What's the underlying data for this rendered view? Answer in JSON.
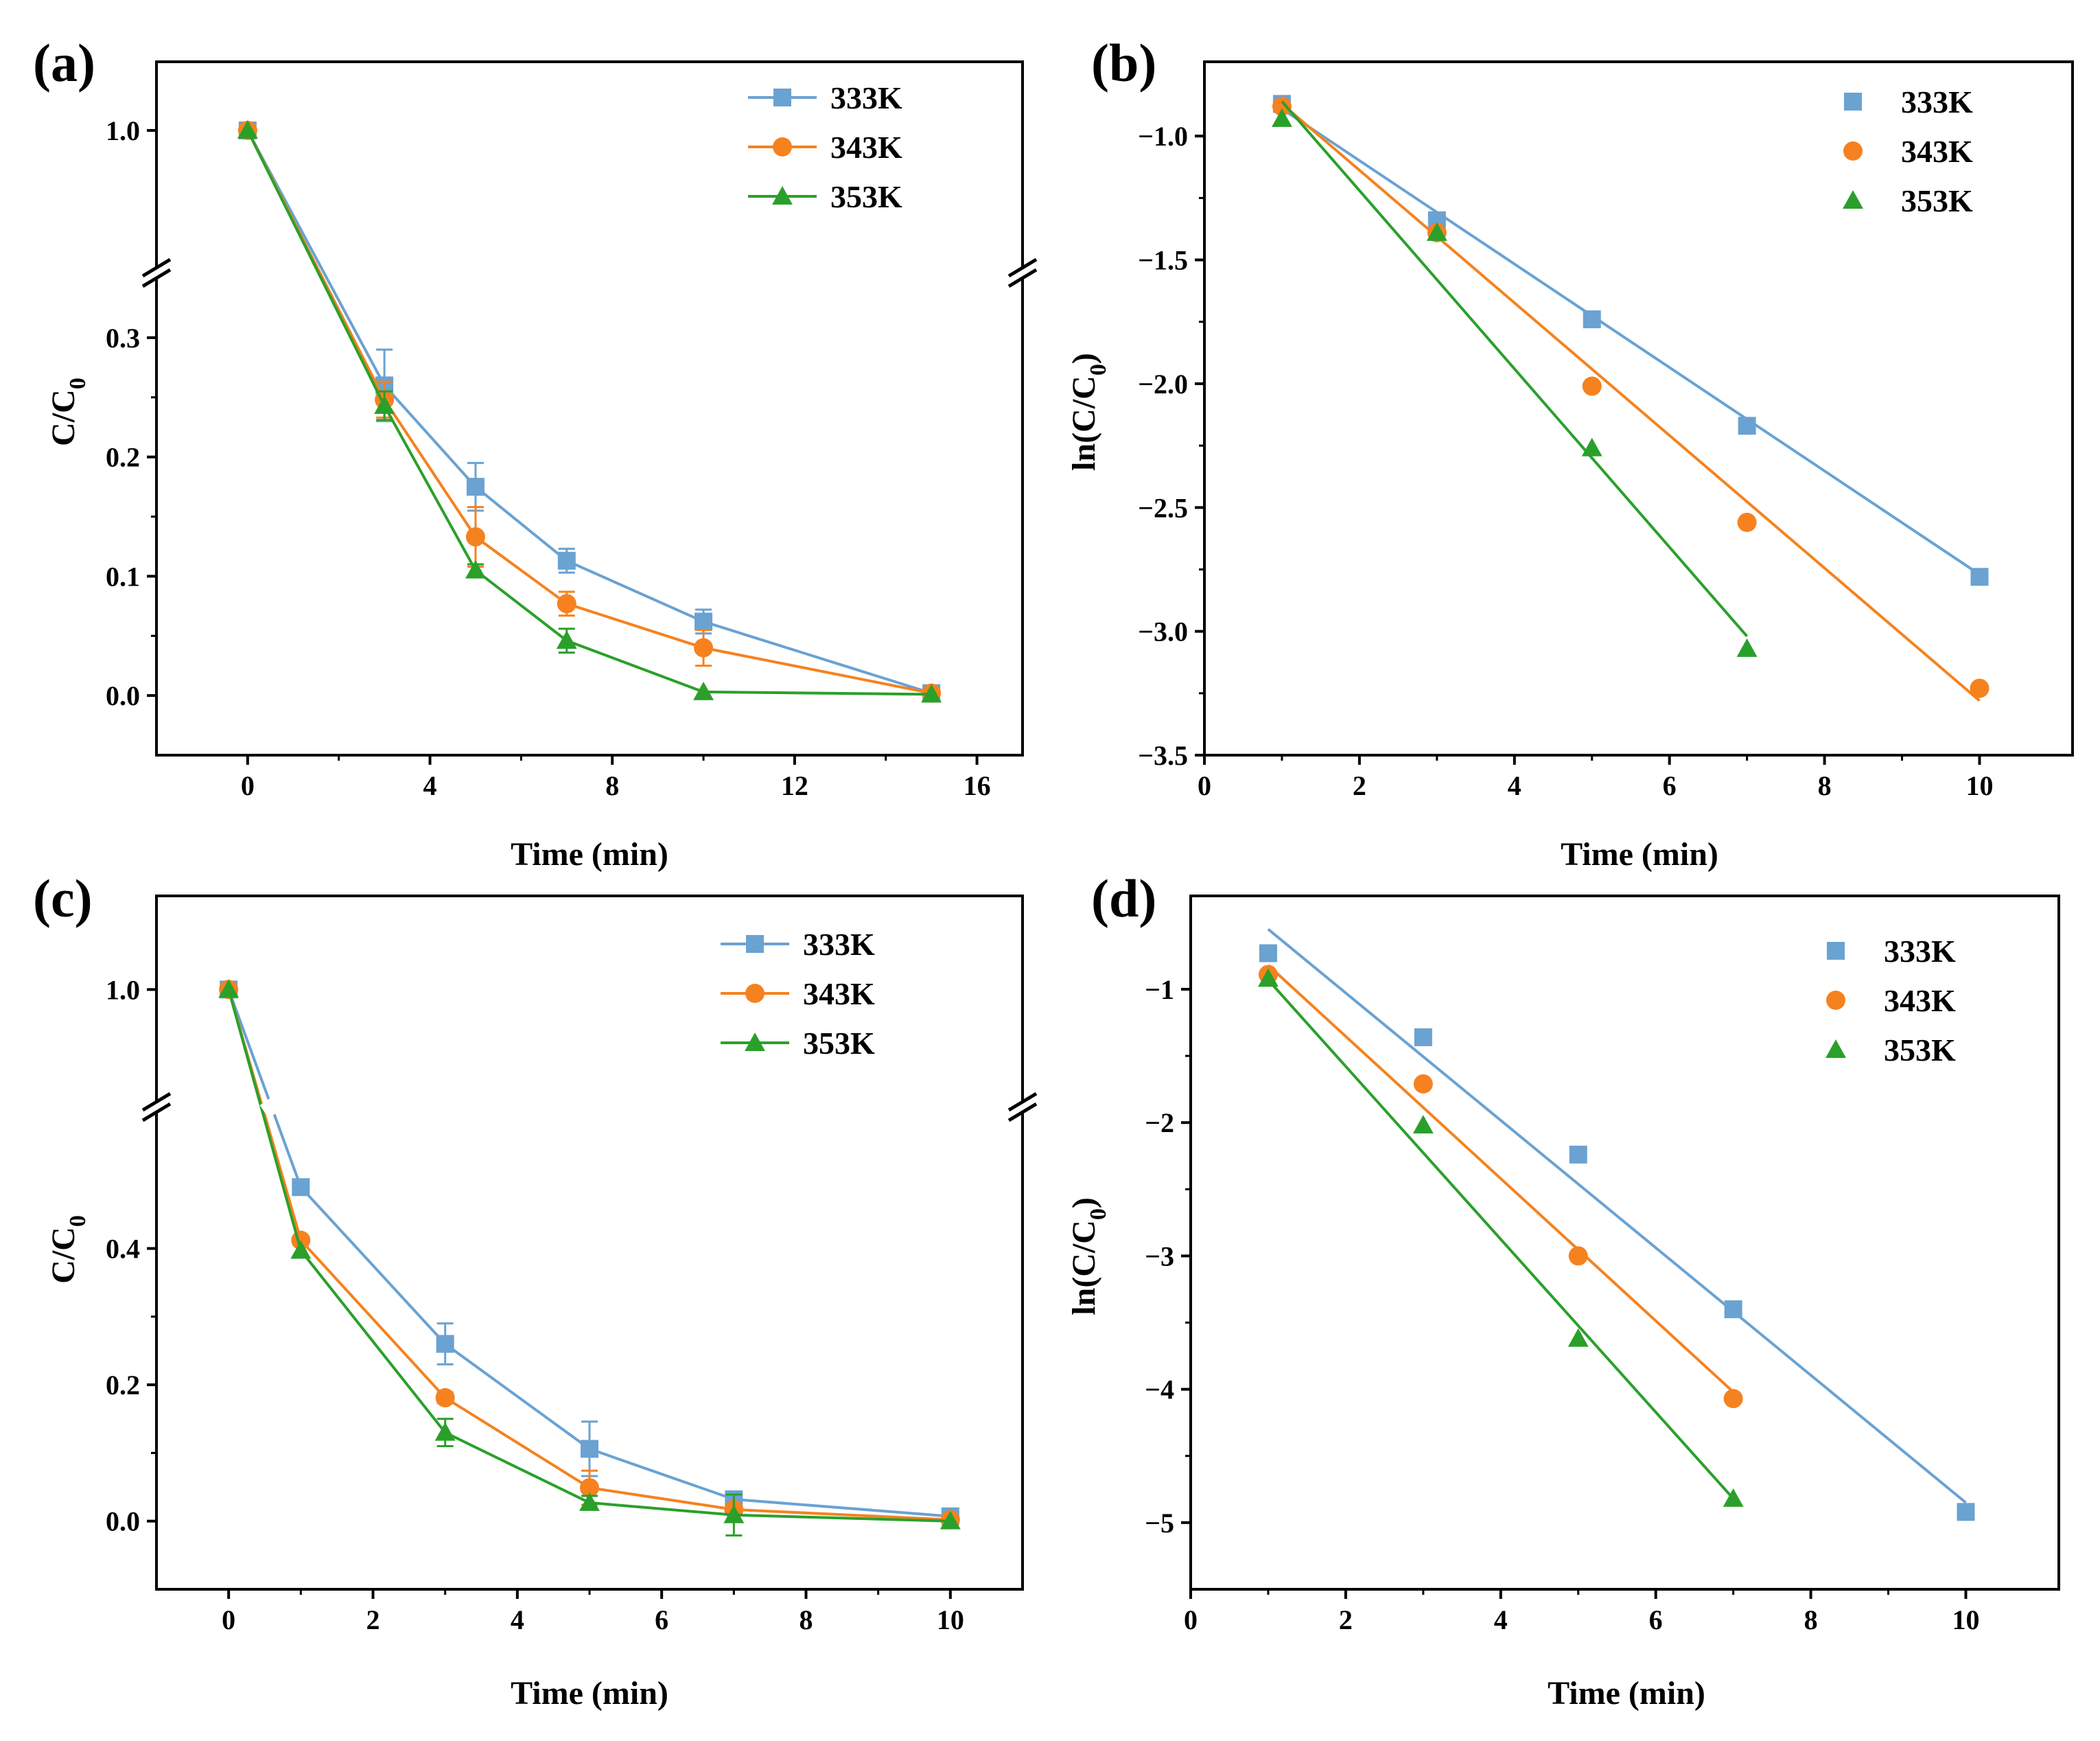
{
  "colors": {
    "333K": "#6aa2d2",
    "343K": "#f5821f",
    "353K": "#2aa02b"
  },
  "chart_data": [
    {
      "panel": "(a)",
      "type": "line",
      "xlabel": "Time (min)",
      "ylabel": "C/C0",
      "ylabel_main": "C/C",
      "ylabel_sub": "0",
      "xlim": [
        -2,
        17
      ],
      "xticks": [
        0,
        4,
        8,
        12,
        16
      ],
      "xtick_labels": [
        "0",
        "4",
        "8",
        "12",
        "16"
      ],
      "yticks": [
        0.0,
        0.1,
        0.2,
        0.3,
        1.0
      ],
      "ytick_labels": [
        "0.0",
        "0.1",
        "0.2",
        "0.3",
        "1.0"
      ],
      "broken_axis": true,
      "y_lower_range": [
        -0.05,
        0.35
      ],
      "y_upper_range": [
        0.88,
        1.06
      ],
      "legend": {
        "style": "line-marker",
        "position": "top-right"
      },
      "series": [
        {
          "name": "333K",
          "x": [
            0,
            3,
            5,
            7,
            10,
            15
          ],
          "y": [
            1.0,
            0.26,
            0.175,
            0.113,
            0.062,
            0.002
          ],
          "err": [
            0,
            0.03,
            0.02,
            0.01,
            0.01,
            0
          ]
        },
        {
          "name": "343K",
          "x": [
            0,
            3,
            5,
            7,
            10,
            15
          ],
          "y": [
            1.0,
            0.248,
            0.133,
            0.077,
            0.04,
            0.002
          ],
          "err": [
            0,
            0.015,
            0.025,
            0.01,
            0.015,
            0
          ]
        },
        {
          "name": "353K",
          "x": [
            0,
            3,
            5,
            7,
            10,
            15
          ],
          "y": [
            1.0,
            0.243,
            0.105,
            0.046,
            0.003,
            0.001
          ],
          "err": [
            0,
            0.012,
            0.005,
            0.01,
            0,
            0
          ]
        }
      ]
    },
    {
      "panel": "(b)",
      "type": "scatter",
      "xlabel": "Time (min)",
      "ylabel": "ln(C/C0)",
      "ylabel_main": "ln(C/C",
      "ylabel_sub": "0",
      "ylabel_end": ")",
      "xlim": [
        0,
        11.2
      ],
      "ylim": [
        -3.5,
        -0.7
      ],
      "xticks": [
        0,
        2,
        4,
        6,
        8,
        10
      ],
      "xtick_labels": [
        "0",
        "2",
        "4",
        "6",
        "8",
        "10"
      ],
      "yticks": [
        -1.0,
        -1.5,
        -2.0,
        -2.5,
        -3.0,
        -3.5
      ],
      "ytick_labels": [
        "−1.0",
        "−1.5",
        "−2.0",
        "−2.5",
        "−3.0",
        "−3.5"
      ],
      "legend": {
        "style": "marker",
        "position": "top-right"
      },
      "series": [
        {
          "name": "333K",
          "x": [
            1,
            3,
            5,
            7,
            10
          ],
          "y": [
            -0.87,
            -1.34,
            -1.74,
            -2.17,
            -2.78
          ],
          "fit": [
            [
              1,
              -0.89
            ],
            [
              10,
              -2.77
            ]
          ]
        },
        {
          "name": "343K",
          "x": [
            1,
            3,
            5,
            7,
            10
          ],
          "y": [
            -0.88,
            -1.39,
            -2.01,
            -2.56,
            -3.23
          ],
          "fit": [
            [
              1,
              -0.87
            ],
            [
              10,
              -3.28
            ]
          ]
        },
        {
          "name": "353K",
          "x": [
            1,
            3,
            5,
            7
          ],
          "y": [
            -0.93,
            -1.39,
            -2.26,
            -3.07
          ],
          "fit": [
            [
              1,
              -0.86
            ],
            [
              7,
              -3.02
            ]
          ]
        }
      ]
    },
    {
      "panel": "(c)",
      "type": "line",
      "xlabel": "Time (min)",
      "ylabel": "C/C0",
      "ylabel_main": "C/C",
      "ylabel_sub": "0",
      "xlim": [
        -1,
        11
      ],
      "xticks": [
        0,
        2,
        4,
        6,
        8,
        10
      ],
      "xtick_labels": [
        "0",
        "2",
        "4",
        "6",
        "8",
        "10"
      ],
      "yticks": [
        0.0,
        0.2,
        0.4,
        1.0
      ],
      "ytick_labels": [
        "0.0",
        "0.2",
        "0.4",
        "1.0"
      ],
      "broken_axis": true,
      "y_lower_range": [
        -0.1,
        0.6
      ],
      "y_upper_range": [
        0.88,
        1.1
      ],
      "legend": {
        "style": "line-marker",
        "position": "top-right"
      },
      "series": [
        {
          "name": "333K",
          "x": [
            0,
            1,
            3,
            5,
            7,
            10
          ],
          "y": [
            1.0,
            0.49,
            0.26,
            0.106,
            0.032,
            0.007
          ],
          "err": [
            0,
            0,
            0.03,
            0.04,
            0.005,
            0
          ]
        },
        {
          "name": "343K",
          "x": [
            0,
            1,
            3,
            5,
            7,
            10
          ],
          "y": [
            1.0,
            0.412,
            0.181,
            0.049,
            0.017,
            0.002
          ],
          "err": [
            0,
            0,
            0.008,
            0.025,
            0.005,
            0
          ]
        },
        {
          "name": "353K",
          "x": [
            0,
            1,
            3,
            5,
            7,
            10
          ],
          "y": [
            1.0,
            0.397,
            0.13,
            0.027,
            0.009,
            0.0
          ],
          "err": [
            0,
            0,
            0.02,
            0.01,
            0.03,
            0
          ]
        }
      ]
    },
    {
      "panel": "(d)",
      "type": "scatter",
      "xlabel": "Time (min)",
      "ylabel": "ln(C/C0)",
      "ylabel_main": "ln(C/C",
      "ylabel_sub": "0",
      "ylabel_end": ")",
      "xlim": [
        0,
        11.2
      ],
      "ylim": [
        -5.5,
        -0.3
      ],
      "xticks": [
        0,
        2,
        4,
        6,
        8,
        10
      ],
      "xtick_labels": [
        "0",
        "2",
        "4",
        "6",
        "8",
        "10"
      ],
      "yticks": [
        -1,
        -2,
        -3,
        -4,
        -5
      ],
      "ytick_labels": [
        "−1",
        "−2",
        "−3",
        "−4",
        "−5"
      ],
      "legend": {
        "style": "marker",
        "position": "top-right"
      },
      "series": [
        {
          "name": "333K",
          "x": [
            1,
            3,
            5,
            7,
            10
          ],
          "y": [
            -0.73,
            -1.36,
            -2.24,
            -3.4,
            -4.92
          ],
          "fit": [
            [
              1,
              -0.55
            ],
            [
              10,
              -4.85
            ]
          ]
        },
        {
          "name": "343K",
          "x": [
            1,
            3,
            5,
            7
          ],
          "y": [
            -0.89,
            -1.71,
            -3.0,
            -4.07
          ],
          "fit": [
            [
              1,
              -0.82
            ],
            [
              7,
              -4.02
            ]
          ]
        },
        {
          "name": "353K",
          "x": [
            1,
            3,
            5,
            7
          ],
          "y": [
            -0.92,
            -2.02,
            -3.62,
            -4.82
          ],
          "fit": [
            [
              1,
              -0.93
            ],
            [
              7,
              -4.82
            ]
          ]
        }
      ]
    }
  ]
}
